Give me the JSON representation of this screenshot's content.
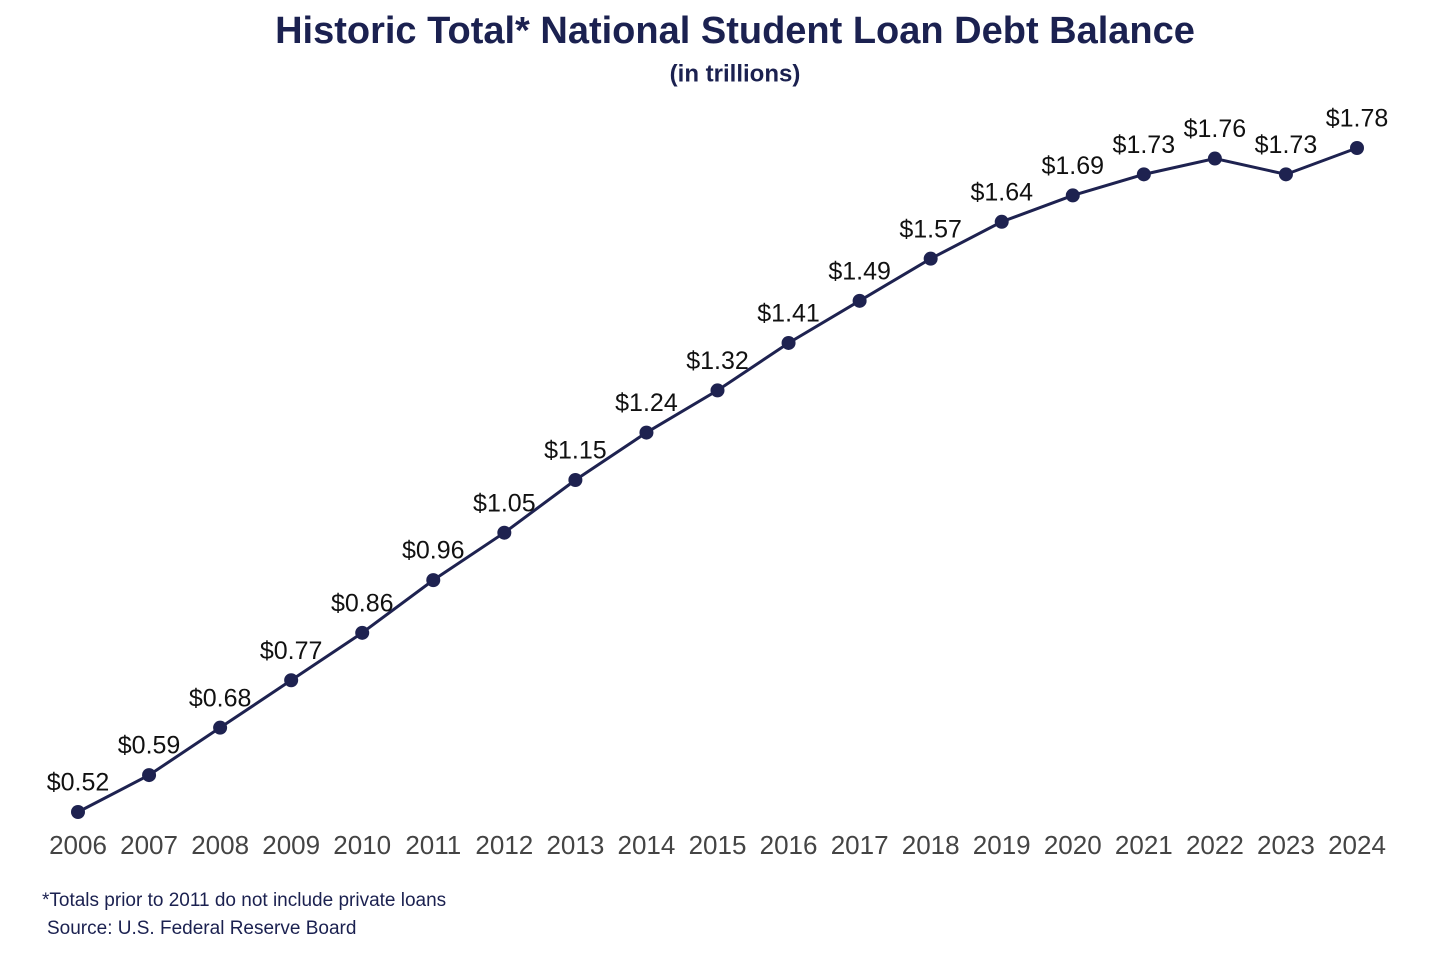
{
  "chart_data": {
    "type": "line",
    "title": "Historic Total* National Student Loan Debt Balance",
    "subtitle": "(in trillions)",
    "categories": [
      "2006",
      "2007",
      "2008",
      "2009",
      "2010",
      "2011",
      "2012",
      "2013",
      "2014",
      "2015",
      "2016",
      "2017",
      "2018",
      "2019",
      "2020",
      "2021",
      "2022",
      "2023",
      "2024"
    ],
    "values": [
      0.52,
      0.59,
      0.68,
      0.77,
      0.86,
      0.96,
      1.05,
      1.15,
      1.24,
      1.32,
      1.41,
      1.49,
      1.57,
      1.64,
      1.69,
      1.73,
      1.76,
      1.73,
      1.78
    ],
    "value_labels": [
      "$0.52",
      "$0.59",
      "$0.68",
      "$0.77",
      "$0.86",
      "$0.96",
      "$1.05",
      "$1.15",
      "$1.24",
      "$1.32",
      "$1.41",
      "$1.49",
      "$1.57",
      "$1.64",
      "$1.69",
      "$1.73",
      "$1.76",
      "$1.73",
      "$1.78"
    ],
    "color": "#1e2250",
    "footnote": "*Totals prior to 2011 do not include private loans",
    "source": "Source: U.S. Federal Reserve Board"
  }
}
